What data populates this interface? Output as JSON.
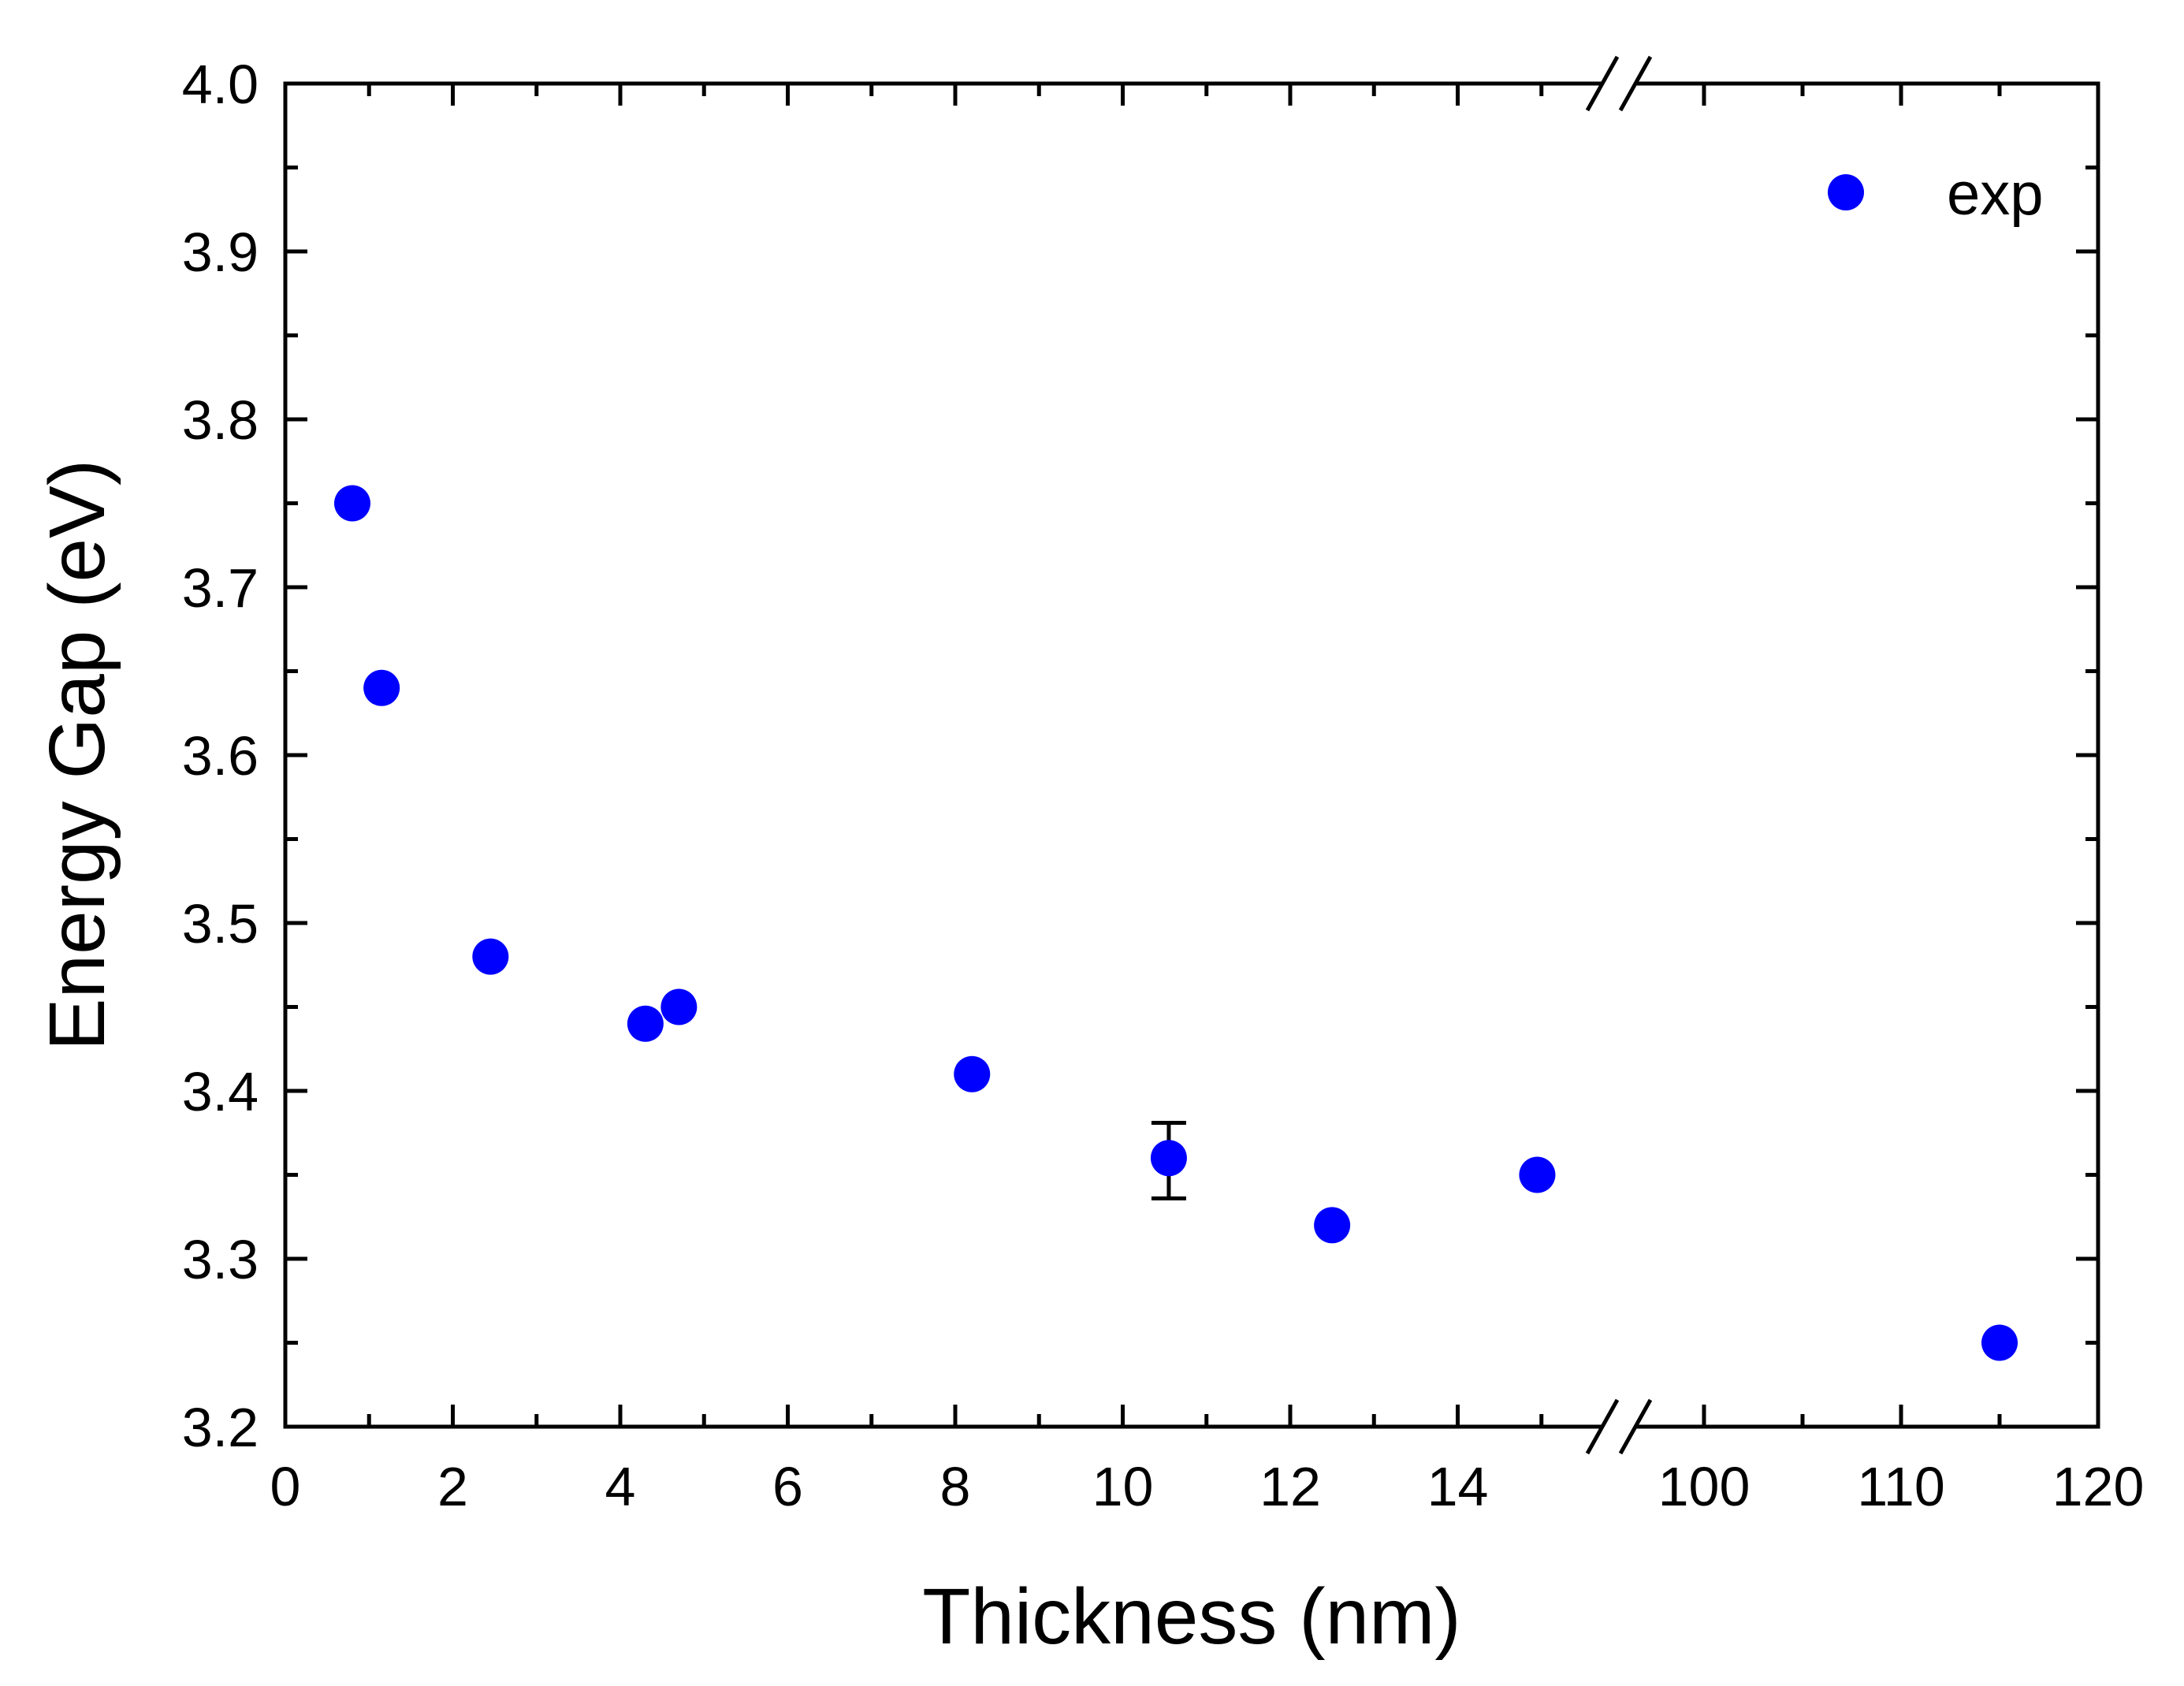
{
  "chart_data": {
    "type": "scatter",
    "title": "",
    "xlabel": "Thickness (nm)",
    "ylabel": "Energy Gap (eV)",
    "ylim": [
      3.2,
      4.0
    ],
    "x_segments": [
      {
        "xlim": [
          0,
          16
        ],
        "ticks": [
          0,
          2,
          4,
          6,
          8,
          10,
          12,
          14
        ],
        "tick_labels": [
          "0",
          "2",
          "4",
          "6",
          "8",
          "10",
          "12",
          "14"
        ]
      },
      {
        "xlim": [
          96,
          120
        ],
        "ticks": [
          100,
          110,
          120
        ],
        "tick_labels": [
          "100",
          "110",
          "120"
        ]
      }
    ],
    "axis_break": "//",
    "y_ticks": [
      3.2,
      3.3,
      3.4,
      3.5,
      3.6,
      3.7,
      3.8,
      3.9,
      4.0
    ],
    "y_tick_labels": [
      "3.2",
      "3.3",
      "3.4",
      "3.5",
      "3.6",
      "3.7",
      "3.8",
      "3.9",
      "4.0"
    ],
    "grid": false,
    "legend_position": "top-right",
    "series": [
      {
        "name": "exp",
        "color": "#0000ff",
        "points": [
          {
            "x": 0.8,
            "y": 3.75
          },
          {
            "x": 1.15,
            "y": 3.64
          },
          {
            "x": 2.45,
            "y": 3.48
          },
          {
            "x": 4.3,
            "y": 3.44
          },
          {
            "x": 4.7,
            "y": 3.45
          },
          {
            "x": 8.2,
            "y": 3.41
          },
          {
            "x": 10.55,
            "y": 3.36,
            "err_low": 3.336,
            "err_high": 3.381
          },
          {
            "x": 12.5,
            "y": 3.32
          },
          {
            "x": 14.95,
            "y": 3.35
          },
          {
            "x": 115,
            "y": 3.25
          }
        ]
      }
    ]
  }
}
